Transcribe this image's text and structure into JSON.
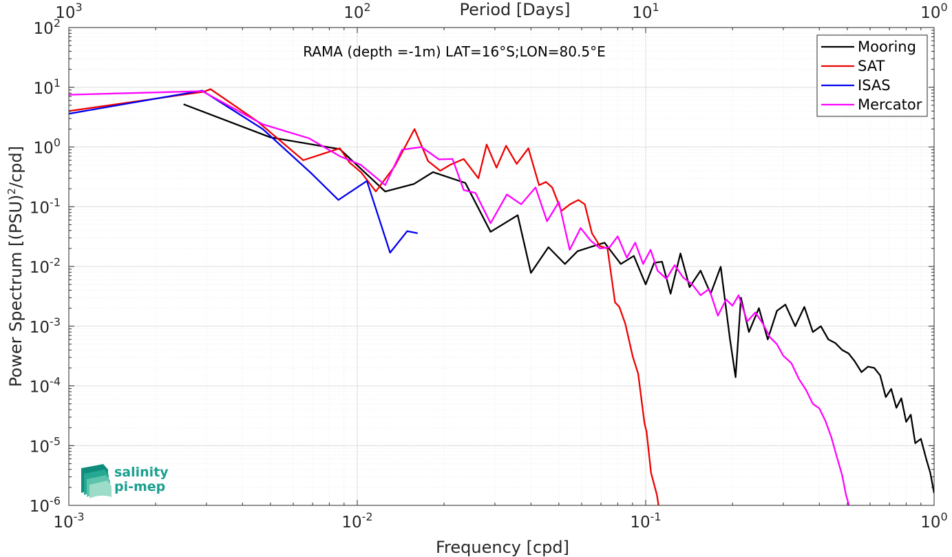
{
  "chart_data": {
    "type": "line",
    "xscale": "log",
    "yscale": "log",
    "xlabel": "Frequency [cpd]",
    "ylabel": "Power Spectrum [(PSU)",
    "ylabel_sup": "2",
    "ylabel_tail": "/cpd]",
    "top_xlabel": "Period [Days]",
    "annotation": "RAMA (depth =-1m) LAT=16°S;LON=80.5°E",
    "xlim": [
      0.001,
      1
    ],
    "ylim": [
      1e-06,
      100
    ],
    "grid": true,
    "minor_grid": true,
    "legend_position": "top-right",
    "x_ticks": [
      {
        "base": "10",
        "exp": "-3"
      },
      {
        "base": "10",
        "exp": "-2"
      },
      {
        "base": "10",
        "exp": "-1"
      },
      {
        "base": "10",
        "exp": "0"
      }
    ],
    "top_ticks": [
      {
        "base": "10",
        "exp": "3"
      },
      {
        "base": "10",
        "exp": "2"
      },
      {
        "base": "10",
        "exp": "1"
      },
      {
        "base": "10",
        "exp": "0"
      }
    ],
    "y_ticks": [
      {
        "base": "10",
        "exp": "-6"
      },
      {
        "base": "10",
        "exp": "-5"
      },
      {
        "base": "10",
        "exp": "-4"
      },
      {
        "base": "10",
        "exp": "-3"
      },
      {
        "base": "10",
        "exp": "-2"
      },
      {
        "base": "10",
        "exp": "-1"
      },
      {
        "base": "10",
        "exp": "0"
      },
      {
        "base": "10",
        "exp": "1"
      },
      {
        "base": "10",
        "exp": "2"
      }
    ],
    "series": [
      {
        "name": "Mooring",
        "color": "#000000",
        "x": [
          0.0025,
          0.005,
          0.0087,
          0.0125,
          0.0157,
          0.0183,
          0.0237,
          0.029,
          0.036,
          0.04,
          0.046,
          0.0525,
          0.058,
          0.066,
          0.072,
          0.082,
          0.091,
          0.1,
          0.107,
          0.114,
          0.122,
          0.132,
          0.142,
          0.155,
          0.168,
          0.182,
          0.196,
          0.205,
          0.214,
          0.228,
          0.247,
          0.265,
          0.285,
          0.305,
          0.33,
          0.355,
          0.38,
          0.405,
          0.43,
          0.455,
          0.48,
          0.505,
          0.53,
          0.56,
          0.59,
          0.62,
          0.65,
          0.68,
          0.71,
          0.74,
          0.77,
          0.8,
          0.83,
          0.86,
          0.9,
          0.94,
          0.97,
          1.0
        ],
        "y": [
          5.2,
          1.45,
          0.92,
          0.18,
          0.24,
          0.38,
          0.25,
          0.038,
          0.072,
          0.0078,
          0.021,
          0.011,
          0.018,
          0.022,
          0.025,
          0.011,
          0.015,
          0.005,
          0.0115,
          0.012,
          0.0035,
          0.0165,
          0.0045,
          0.0085,
          0.0035,
          0.0099,
          0.0006,
          0.00014,
          0.003,
          0.0008,
          0.002,
          0.0006,
          0.0018,
          0.0023,
          0.001,
          0.0021,
          0.0008,
          0.001,
          0.0006,
          0.00052,
          0.0004,
          0.00035,
          0.00026,
          0.00017,
          0.00021,
          0.0002,
          0.00015,
          6.5e-05,
          8.9e-05,
          4.3e-05,
          6.2e-05,
          2.5e-05,
          3.3e-05,
          1.1e-05,
          1.3e-05,
          5.9e-06,
          3.5e-06,
          1.6e-06
        ]
      },
      {
        "name": "SAT",
        "color": "#ee0000",
        "x": [
          0.001,
          0.00293,
          0.0031,
          0.0045,
          0.0065,
          0.0087,
          0.0094,
          0.0103,
          0.0116,
          0.0135,
          0.0158,
          0.0176,
          0.0194,
          0.0211,
          0.0234,
          0.0263,
          0.0281,
          0.0304,
          0.0328,
          0.0357,
          0.0392,
          0.0427,
          0.0451,
          0.0474,
          0.051,
          0.0547,
          0.0585,
          0.0615,
          0.0651,
          0.0694,
          0.0737,
          0.0783,
          0.081,
          0.085,
          0.0902,
          0.0942,
          0.099,
          0.1007,
          0.1044,
          0.1094,
          0.1116
        ],
        "y": [
          4.0,
          8.4,
          9.3,
          2.7,
          0.6,
          0.95,
          0.55,
          0.38,
          0.18,
          0.48,
          2.0,
          0.58,
          0.4,
          0.51,
          0.63,
          0.3,
          1.1,
          0.45,
          1.05,
          0.52,
          0.95,
          0.23,
          0.26,
          0.21,
          0.085,
          0.11,
          0.13,
          0.11,
          0.036,
          0.022,
          0.02,
          0.0025,
          0.0021,
          0.0011,
          0.00031,
          0.00016,
          2.4e-05,
          1.7e-05,
          3.5e-06,
          1.5e-06,
          8e-07
        ]
      },
      {
        "name": "ISAS",
        "color": "#0000ee",
        "x": [
          0.001,
          0.0029,
          0.0047,
          0.0069,
          0.0086,
          0.0108,
          0.013,
          0.0149,
          0.0162
        ],
        "y": [
          3.6,
          8.8,
          2.0,
          0.37,
          0.13,
          0.27,
          0.017,
          0.039,
          0.036
        ]
      },
      {
        "name": "Mercator",
        "color": "#ff00ff",
        "x": [
          0.001,
          0.0029,
          0.0047,
          0.0068,
          0.0087,
          0.0103,
          0.0125,
          0.0143,
          0.0167,
          0.0192,
          0.0214,
          0.0234,
          0.0257,
          0.029,
          0.033,
          0.037,
          0.0415,
          0.0455,
          0.05,
          0.0545,
          0.0595,
          0.0645,
          0.0695,
          0.075,
          0.08,
          0.086,
          0.092,
          0.098,
          0.104,
          0.11,
          0.118,
          0.126,
          0.135,
          0.145,
          0.155,
          0.166,
          0.178,
          0.19,
          0.2,
          0.21,
          0.225,
          0.24,
          0.255,
          0.27,
          0.285,
          0.3,
          0.32,
          0.34,
          0.36,
          0.38,
          0.4,
          0.42,
          0.44,
          0.46,
          0.48,
          0.495,
          0.51
        ],
        "y": [
          7.5,
          8.6,
          2.4,
          1.4,
          0.7,
          0.5,
          0.23,
          0.9,
          1.0,
          0.62,
          0.63,
          0.19,
          0.17,
          0.053,
          0.16,
          0.11,
          0.21,
          0.057,
          0.12,
          0.019,
          0.044,
          0.027,
          0.02,
          0.021,
          0.032,
          0.014,
          0.025,
          0.011,
          0.019,
          0.0085,
          0.0062,
          0.0105,
          0.0065,
          0.005,
          0.0033,
          0.0042,
          0.0015,
          0.0028,
          0.0022,
          0.0033,
          0.0012,
          0.0017,
          0.0011,
          0.00065,
          0.0005,
          0.00032,
          0.00024,
          0.00013,
          8.5e-05,
          5e-05,
          4.2e-05,
          2.6e-05,
          1.4e-05,
          6.5e-06,
          3.2e-06,
          1.5e-06,
          9e-07
        ]
      }
    ]
  },
  "logo": {
    "line1": "salinity",
    "line2": "pi-mep",
    "color": "#1aa090"
  }
}
